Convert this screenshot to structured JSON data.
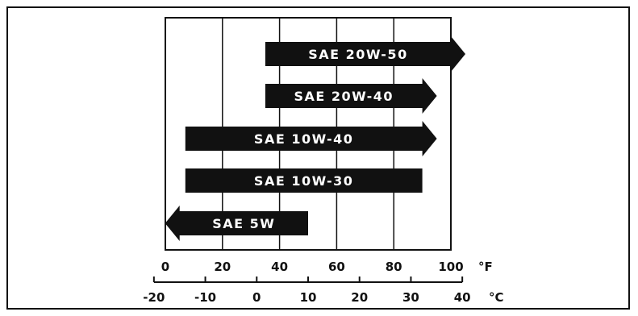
{
  "colors": {
    "ink": "#111111",
    "band_text": "#ffffff",
    "background": "#ffffff"
  },
  "fahrenheit_axis": {
    "unit": "°F",
    "ticks": [
      0,
      20,
      40,
      60,
      80,
      100
    ]
  },
  "celsius_axis": {
    "unit": "°C",
    "ticks": [
      -20,
      -10,
      0,
      10,
      20,
      30,
      40
    ]
  },
  "bands": [
    {
      "label": "SAE 20W-50",
      "from_f": 35,
      "to_f": 100,
      "open_low": false,
      "open_high": true
    },
    {
      "label": "SAE 20W-40",
      "from_f": 35,
      "to_f": 90,
      "open_low": false,
      "open_high": true
    },
    {
      "label": "SAE 10W-40",
      "from_f": 7,
      "to_f": 90,
      "open_low": false,
      "open_high": true
    },
    {
      "label": "SAE 10W-30",
      "from_f": 7,
      "to_f": 90,
      "open_low": false,
      "open_high": false
    },
    {
      "label": "SAE 5W",
      "from_f": 5,
      "to_f": 50,
      "open_low": true,
      "open_high": false
    }
  ]
}
